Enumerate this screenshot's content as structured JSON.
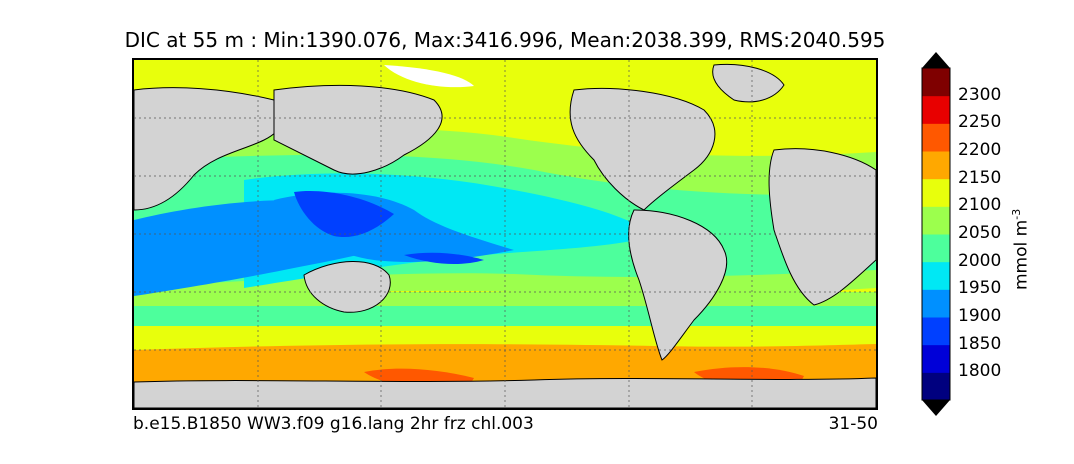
{
  "title": "DIC at 55 m : Min:1390.076, Max:3416.996, Mean:2038.399, RMS:2040.595",
  "caption_left": "b.e15.B1850 WW3.f09 g16.lang 2hr frz chl.003",
  "caption_right": "31-50",
  "colorbar": {
    "unit_label": "mmol m",
    "unit_exponent": "-3",
    "ticks": [
      "1800",
      "1850",
      "1900",
      "1950",
      "2000",
      "2050",
      "2100",
      "2150",
      "2200",
      "2250",
      "2300"
    ],
    "colors": [
      "#00007f",
      "#0000d8",
      "#0040ff",
      "#0090ff",
      "#00e8f4",
      "#4dff9c",
      "#9cff4d",
      "#e8ff0c",
      "#ffa800",
      "#ff5800",
      "#e80000",
      "#7f0000"
    ]
  },
  "map_colors": {
    "land": "#d3d3d3",
    "ice": "#ffffff"
  }
}
